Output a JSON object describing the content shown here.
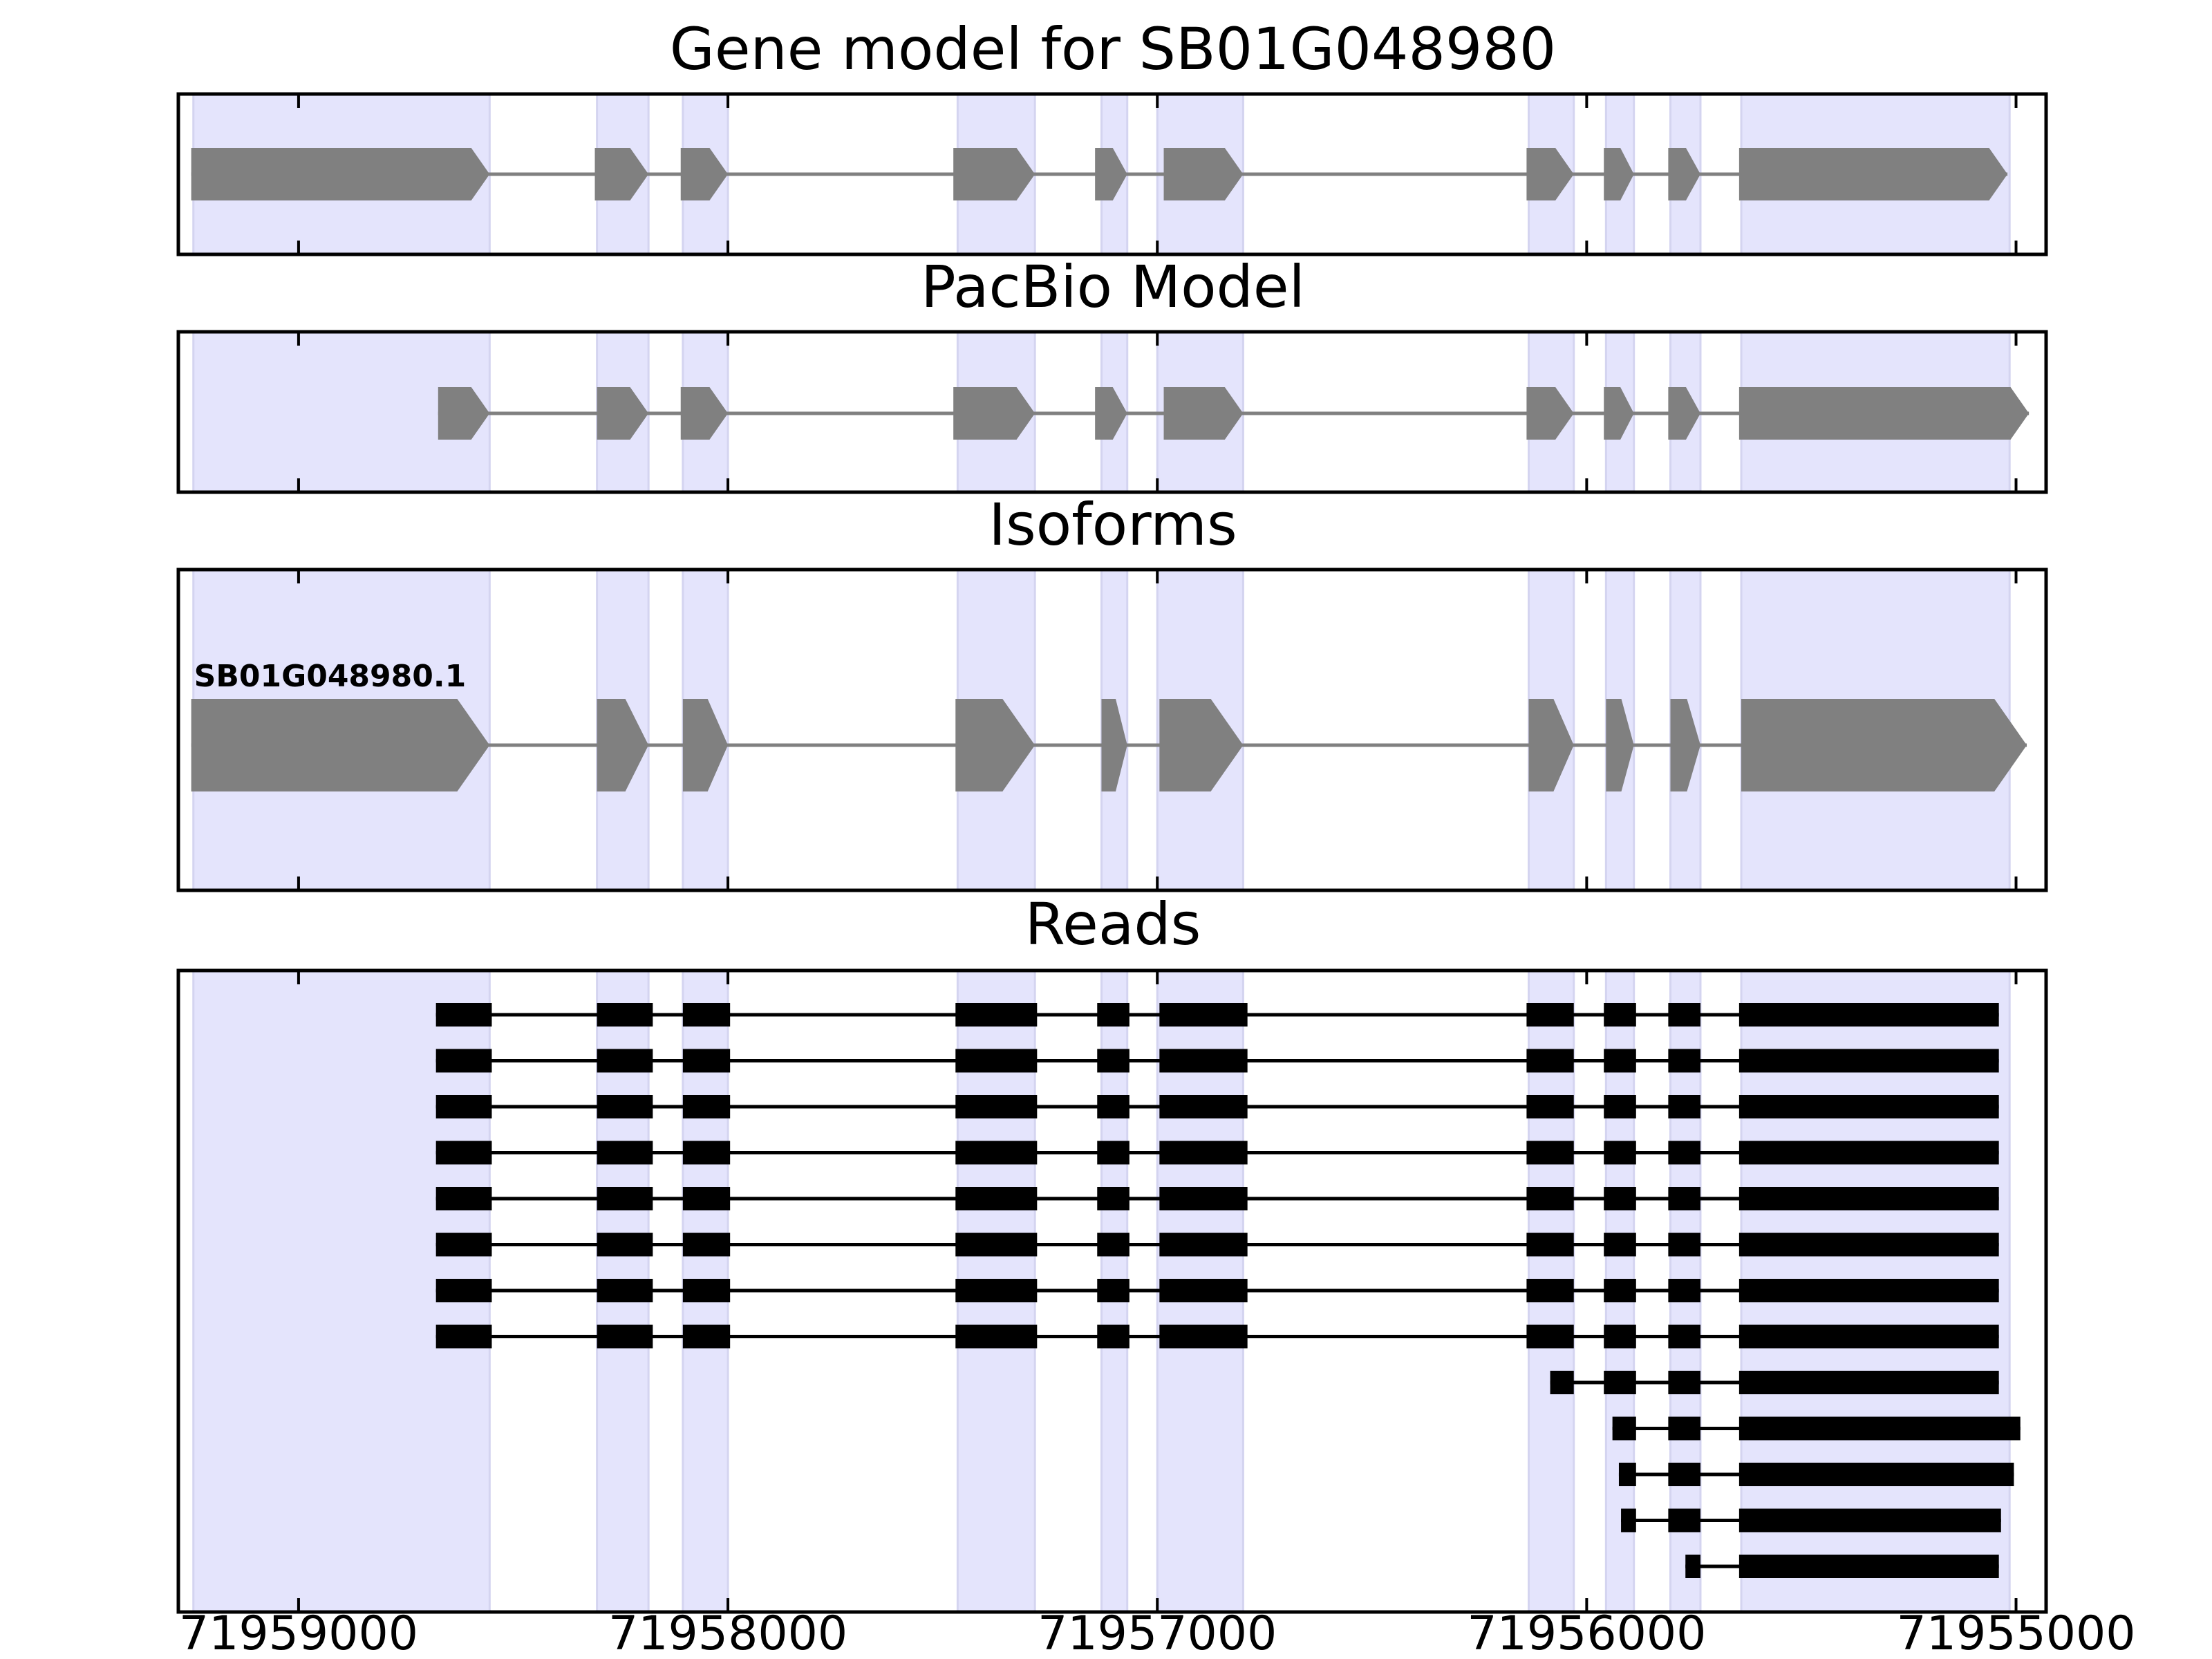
{
  "chart_data": {
    "type": "gene-structure",
    "x_axis": {
      "range": [
        71959280,
        71954930
      ],
      "reversed": true,
      "tick_values": [
        71959000,
        71958000,
        71957000,
        71956000,
        71955000
      ],
      "tick_labels": [
        "71959000",
        "71958000",
        "71957000",
        "71956000",
        "71955000"
      ]
    },
    "shading_color": "#e4e4fc",
    "shaded_regions": [
      [
        71959245,
        71958555
      ],
      [
        71958305,
        71958185
      ],
      [
        71958105,
        71958000
      ],
      [
        71957465,
        71957285
      ],
      [
        71957130,
        71957070
      ],
      [
        71957000,
        71956800
      ],
      [
        71956135,
        71956030
      ],
      [
        71955955,
        71955890
      ],
      [
        71955805,
        71955735
      ],
      [
        71955640,
        71955015
      ]
    ],
    "panels": [
      {
        "title": "Gene model for SB01G048980",
        "feature_color": "#808080",
        "models": [
          {
            "label": "",
            "exons": [
              [
                71959250,
                71958555
              ],
              [
                71958310,
                71958185
              ],
              [
                71958110,
                71958000
              ],
              [
                71957475,
                71957285
              ],
              [
                71957145,
                71957070
              ],
              [
                71956985,
                71956800
              ],
              [
                71956140,
                71956030
              ],
              [
                71955960,
                71955890
              ],
              [
                71955810,
                71955735
              ],
              [
                71955645,
                71955020
              ]
            ]
          }
        ]
      },
      {
        "title": "PacBio Model",
        "feature_color": "#808080",
        "models": [
          {
            "label": "",
            "exons": [
              [
                71958675,
                71958555
              ],
              [
                71958305,
                71958185
              ],
              [
                71958110,
                71958000
              ],
              [
                71957475,
                71957285
              ],
              [
                71957145,
                71957070
              ],
              [
                71956985,
                71956800
              ],
              [
                71956140,
                71956030
              ],
              [
                71955960,
                71955890
              ],
              [
                71955810,
                71955735
              ],
              [
                71955645,
                71954970
              ]
            ]
          }
        ]
      },
      {
        "title": "Isoforms",
        "feature_color": "#808080",
        "models": [
          {
            "label": "SB01G048980.1",
            "exons": [
              [
                71959250,
                71958555
              ],
              [
                71958305,
                71958185
              ],
              [
                71958105,
                71958000
              ],
              [
                71957470,
                71957285
              ],
              [
                71957130,
                71957070
              ],
              [
                71956995,
                71956800
              ],
              [
                71956135,
                71956030
              ],
              [
                71955955,
                71955890
              ],
              [
                71955805,
                71955735
              ],
              [
                71955640,
                71954975
              ]
            ]
          }
        ]
      },
      {
        "title": "Reads",
        "feature_color": "#000000",
        "reads": [
          {
            "exons": [
              [
                71958680,
                71958550
              ],
              [
                71958305,
                71958175
              ],
              [
                71958105,
                71957995
              ],
              [
                71957470,
                71957280
              ],
              [
                71957140,
                71957065
              ],
              [
                71956995,
                71956790
              ],
              [
                71956140,
                71956030
              ],
              [
                71955960,
                71955885
              ],
              [
                71955810,
                71955735
              ],
              [
                71955645,
                71955040
              ]
            ]
          },
          {
            "exons": [
              [
                71958680,
                71958550
              ],
              [
                71958305,
                71958175
              ],
              [
                71958105,
                71957995
              ],
              [
                71957470,
                71957280
              ],
              [
                71957140,
                71957065
              ],
              [
                71956995,
                71956790
              ],
              [
                71956140,
                71956030
              ],
              [
                71955960,
                71955885
              ],
              [
                71955810,
                71955735
              ],
              [
                71955645,
                71955040
              ]
            ]
          },
          {
            "exons": [
              [
                71958680,
                71958550
              ],
              [
                71958305,
                71958175
              ],
              [
                71958105,
                71957995
              ],
              [
                71957470,
                71957280
              ],
              [
                71957140,
                71957065
              ],
              [
                71956995,
                71956790
              ],
              [
                71956140,
                71956030
              ],
              [
                71955960,
                71955885
              ],
              [
                71955810,
                71955735
              ],
              [
                71955645,
                71955040
              ]
            ]
          },
          {
            "exons": [
              [
                71958680,
                71958550
              ],
              [
                71958305,
                71958175
              ],
              [
                71958105,
                71957995
              ],
              [
                71957470,
                71957280
              ],
              [
                71957140,
                71957065
              ],
              [
                71956995,
                71956790
              ],
              [
                71956140,
                71956030
              ],
              [
                71955960,
                71955885
              ],
              [
                71955810,
                71955735
              ],
              [
                71955645,
                71955040
              ]
            ]
          },
          {
            "exons": [
              [
                71958680,
                71958550
              ],
              [
                71958305,
                71958175
              ],
              [
                71958105,
                71957995
              ],
              [
                71957470,
                71957280
              ],
              [
                71957140,
                71957065
              ],
              [
                71956995,
                71956790
              ],
              [
                71956140,
                71956030
              ],
              [
                71955960,
                71955885
              ],
              [
                71955810,
                71955735
              ],
              [
                71955645,
                71955040
              ]
            ]
          },
          {
            "exons": [
              [
                71958680,
                71958550
              ],
              [
                71958305,
                71958175
              ],
              [
                71958105,
                71957995
              ],
              [
                71957470,
                71957280
              ],
              [
                71957140,
                71957065
              ],
              [
                71956995,
                71956790
              ],
              [
                71956140,
                71956030
              ],
              [
                71955960,
                71955885
              ],
              [
                71955810,
                71955735
              ],
              [
                71955645,
                71955040
              ]
            ]
          },
          {
            "exons": [
              [
                71958680,
                71958550
              ],
              [
                71958305,
                71958175
              ],
              [
                71958105,
                71957995
              ],
              [
                71957470,
                71957280
              ],
              [
                71957140,
                71957065
              ],
              [
                71956995,
                71956790
              ],
              [
                71956140,
                71956030
              ],
              [
                71955960,
                71955885
              ],
              [
                71955810,
                71955735
              ],
              [
                71955645,
                71955040
              ]
            ]
          },
          {
            "exons": [
              [
                71958680,
                71958550
              ],
              [
                71958305,
                71958175
              ],
              [
                71958105,
                71957995
              ],
              [
                71957470,
                71957280
              ],
              [
                71957140,
                71957065
              ],
              [
                71956995,
                71956790
              ],
              [
                71956140,
                71956030
              ],
              [
                71955960,
                71955885
              ],
              [
                71955810,
                71955735
              ],
              [
                71955645,
                71955040
              ]
            ]
          },
          {
            "exons": [
              [
                71956085,
                71956030
              ],
              [
                71955960,
                71955885
              ],
              [
                71955810,
                71955735
              ],
              [
                71955645,
                71955040
              ]
            ]
          },
          {
            "exons": [
              [
                71955940,
                71955885
              ],
              [
                71955810,
                71955735
              ],
              [
                71955645,
                71954990
              ]
            ]
          },
          {
            "exons": [
              [
                71955925,
                71955885
              ],
              [
                71955810,
                71955735
              ],
              [
                71955645,
                71955005
              ]
            ]
          },
          {
            "exons": [
              [
                71955920,
                71955885
              ],
              [
                71955810,
                71955735
              ],
              [
                71955645,
                71955035
              ]
            ]
          },
          {
            "exons": [
              [
                71955770,
                71955735
              ],
              [
                71955645,
                71955040
              ]
            ]
          }
        ]
      }
    ]
  }
}
